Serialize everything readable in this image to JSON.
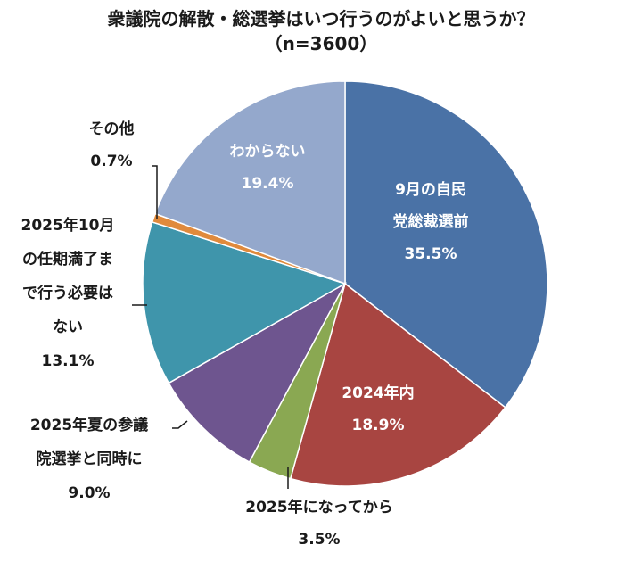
{
  "title": "衆議院の解散・総選挙はいつ行うのがよいと思うか？",
  "subtitle": "（n=3600）",
  "chart_data": {
    "type": "pie",
    "start_angle_deg": 0,
    "direction": "clockwise",
    "slices": [
      {
        "label": [
          "9月の自民",
          "党総裁選前"
        ],
        "value_text": "35.5%",
        "value": 35.5,
        "color": "#4a72a6",
        "label_pos": "inside"
      },
      {
        "label": [
          "2024年内"
        ],
        "value_text": "18.9%",
        "value": 18.9,
        "color": "#a84541",
        "label_pos": "inside"
      },
      {
        "label": [
          "2025年になってから"
        ],
        "value_text": "3.5%",
        "value": 3.5,
        "color": "#8aa852",
        "label_pos": "outside"
      },
      {
        "label": [
          "2025年夏の参議",
          "院選挙と同時に"
        ],
        "value_text": "9.0%",
        "value": 9.0,
        "color": "#6e558f",
        "label_pos": "outside"
      },
      {
        "label": [
          "2025年10月",
          "の任期満了ま",
          "で行う必要は",
          "ない"
        ],
        "value_text": "13.1%",
        "value": 13.1,
        "color": "#3f95ab",
        "label_pos": "outside"
      },
      {
        "label": [
          "その他"
        ],
        "value_text": "0.7%",
        "value": 0.7,
        "color": "#e08a3c",
        "label_pos": "outside"
      },
      {
        "label": [
          "わからない"
        ],
        "value_text": "19.4%",
        "value": 19.4,
        "color": "#94a8cc",
        "label_pos": "inside"
      }
    ]
  }
}
